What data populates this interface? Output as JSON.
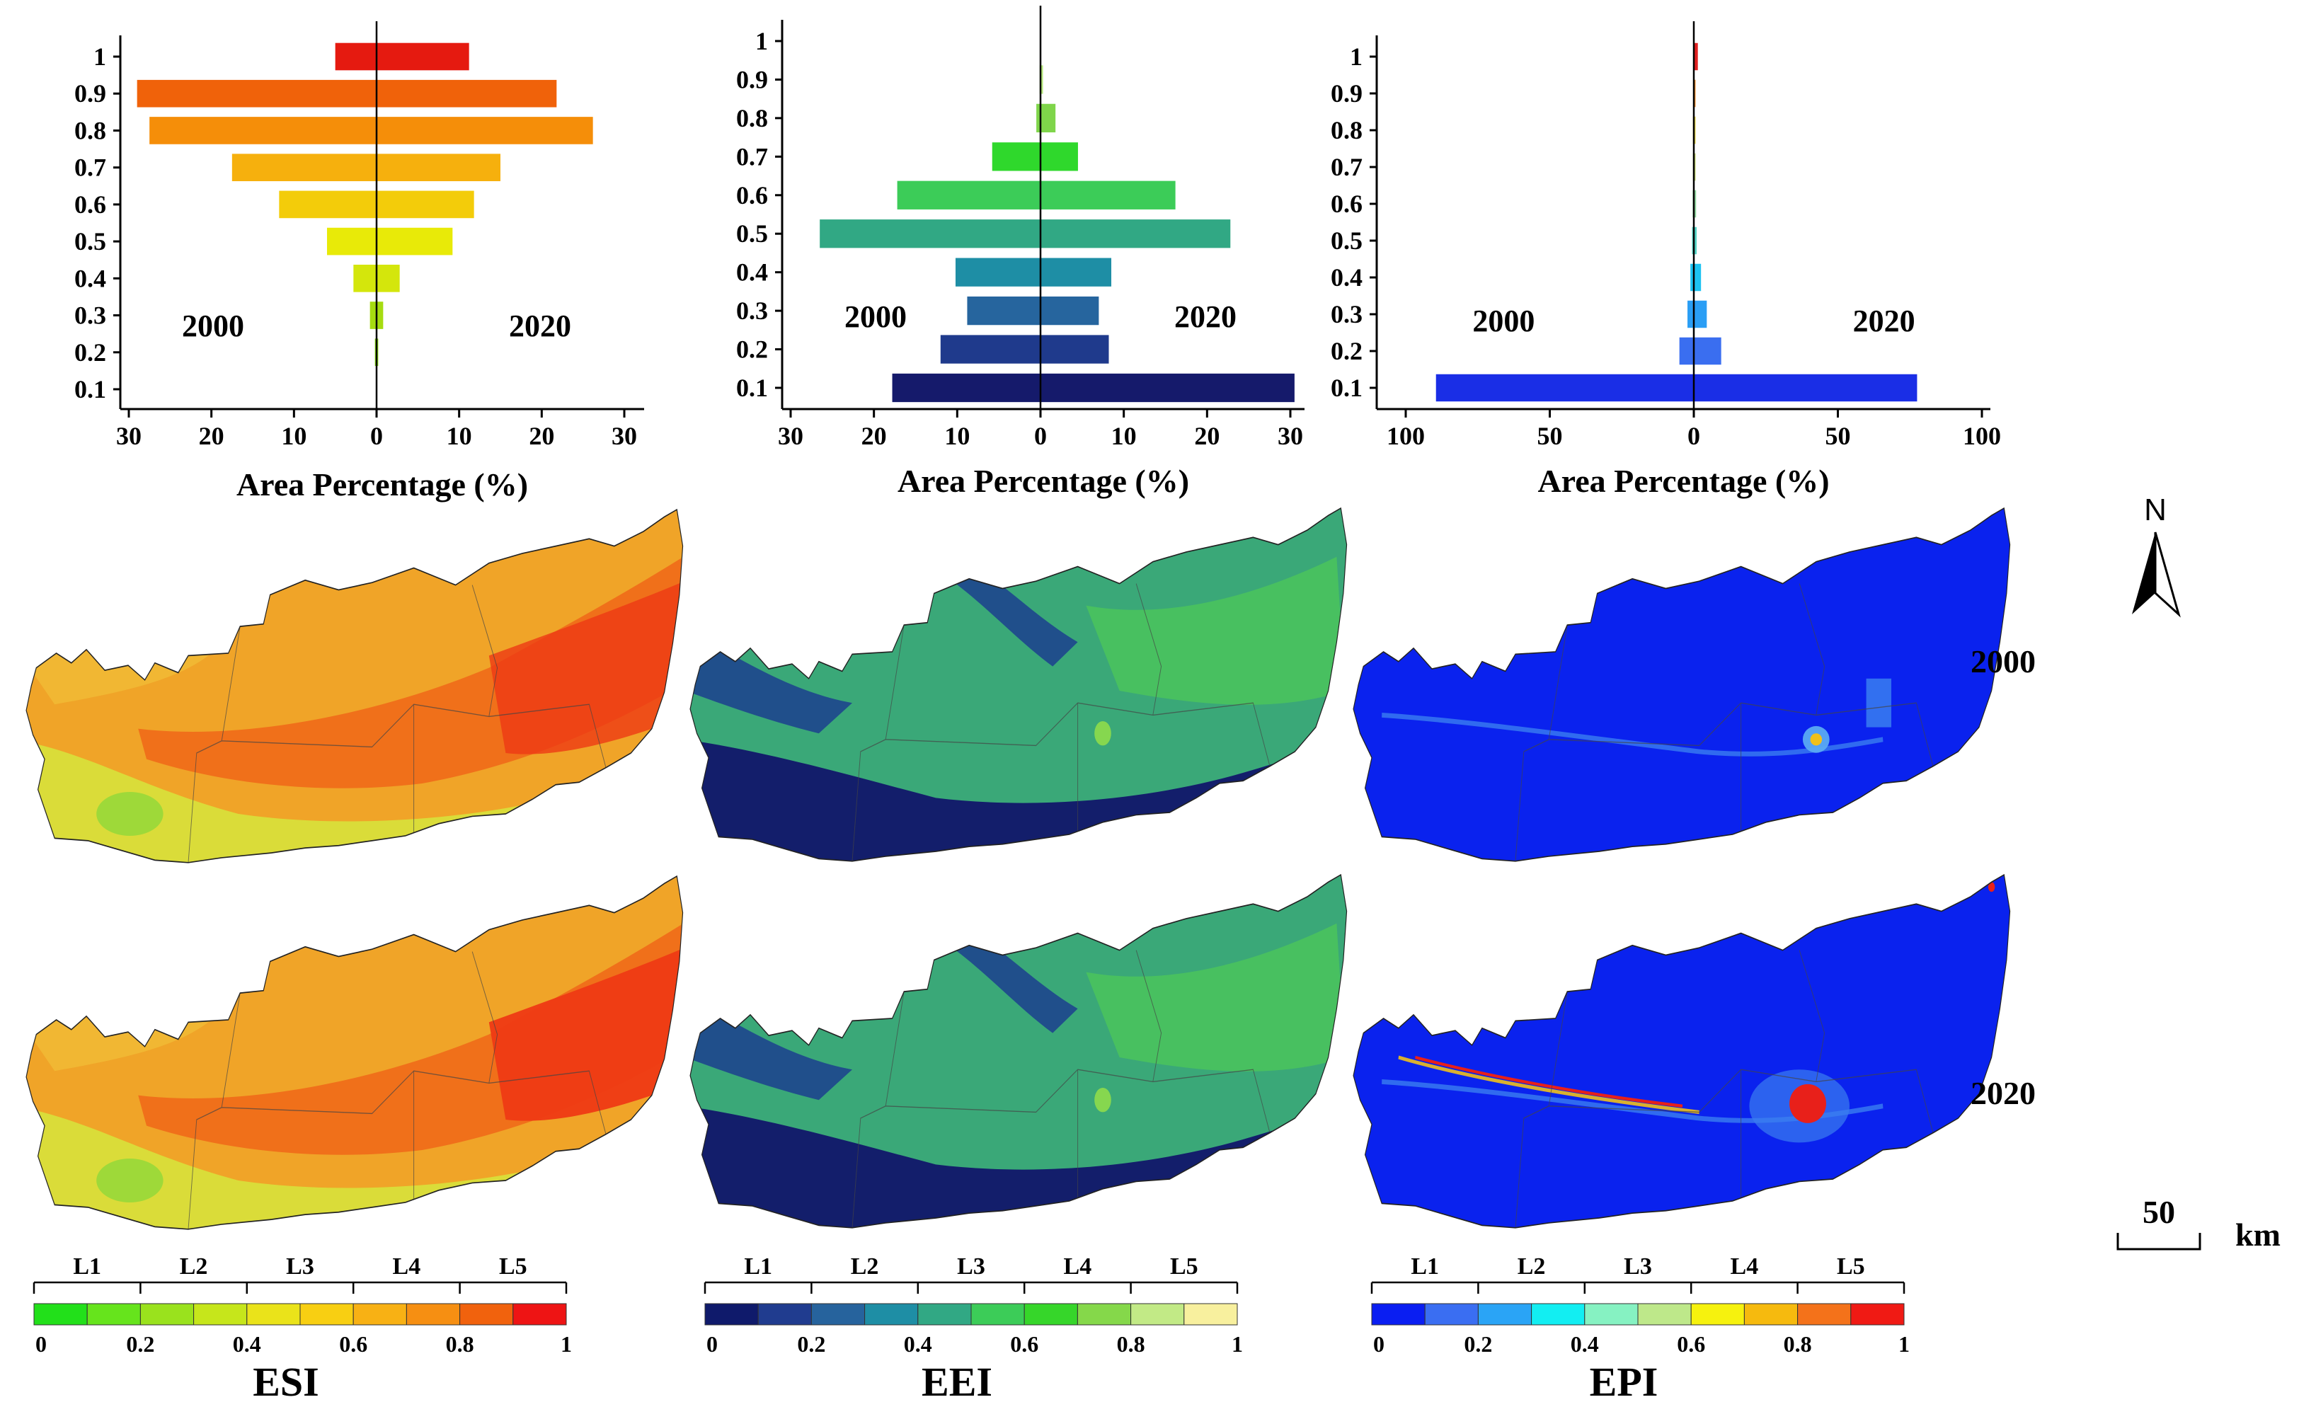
{
  "chart_data": [
    {
      "type": "bar",
      "orientation": "horizontal-pyramid",
      "index": "ESI",
      "xlabel": "Area Percentage (%)",
      "xlim": [
        -30,
        30
      ],
      "xticks": [
        30,
        20,
        10,
        0,
        10,
        20,
        30
      ],
      "yticks": [
        "0.1",
        "0.2",
        "0.3",
        "0.4",
        "0.5",
        "0.6",
        "0.7",
        "0.8",
        "0.9",
        "1"
      ],
      "left_year": "2000",
      "right_year": "2020",
      "colors": [
        "#38d13a",
        "#7ed40e",
        "#a6dc10",
        "#d4e60c",
        "#e8ea08",
        "#f3cc0a",
        "#f6b00d",
        "#f58e09",
        "#f0620a",
        "#e51a10"
      ],
      "values_2000": [
        0,
        0.2,
        0.8,
        2.8,
        6.0,
        11.8,
        17.5,
        27.5,
        29.0,
        5.0
      ],
      "values_2020": [
        0,
        0.2,
        0.8,
        2.8,
        9.2,
        11.8,
        15.0,
        26.2,
        21.8,
        11.2
      ]
    },
    {
      "type": "bar",
      "orientation": "horizontal-pyramid",
      "index": "EEI",
      "xlabel": "Area Percentage (%)",
      "xlim": [
        -30,
        30
      ],
      "xticks": [
        30,
        20,
        10,
        0,
        10,
        20,
        30
      ],
      "yticks": [
        "0.1",
        "0.2",
        "0.3",
        "0.4",
        "0.5",
        "0.6",
        "0.7",
        "0.8",
        "0.9",
        "1"
      ],
      "left_year": "2000",
      "right_year": "2020",
      "colors": [
        "#151a6b",
        "#1f3a8c",
        "#26659e",
        "#1e8ea5",
        "#31a884",
        "#3ccc58",
        "#2fd82c",
        "#7fd54a",
        "#b7e87c",
        "#f2ef98"
      ],
      "values_2000": [
        17.8,
        12.0,
        8.8,
        10.2,
        26.5,
        17.2,
        5.8,
        0.5,
        0.1,
        0
      ],
      "values_2020": [
        30.5,
        8.2,
        7.0,
        8.5,
        22.8,
        16.2,
        4.5,
        1.8,
        0.3,
        0
      ]
    },
    {
      "type": "bar",
      "orientation": "horizontal-pyramid",
      "index": "EPI",
      "xlabel": "Area Percentage (%)",
      "xlim": [
        -100,
        100
      ],
      "xticks": [
        100,
        50,
        0,
        50,
        100
      ],
      "yticks": [
        "0.1",
        "0.2",
        "0.3",
        "0.4",
        "0.5",
        "0.6",
        "0.7",
        "0.8",
        "0.9",
        "1"
      ],
      "left_year": "2000",
      "right_year": "2020",
      "colors": [
        "#1a2ee6",
        "#3a6ef0",
        "#2a9ef5",
        "#1dc3f2",
        "#57d6c8",
        "#92d8a0",
        "#c4d868",
        "#e7d43a",
        "#f08a25",
        "#e02020"
      ],
      "values_2000": [
        89.5,
        5.0,
        2.2,
        1.2,
        0.6,
        0.4,
        0.3,
        0.3,
        0.2,
        0.2
      ],
      "values_2020": [
        77.5,
        9.5,
        4.5,
        2.5,
        1.0,
        0.8,
        0.6,
        0.6,
        0.6,
        1.4
      ]
    }
  ],
  "years": {
    "top": "2000",
    "bottom": "2020"
  },
  "north_label": "N",
  "scalebar": {
    "value": "50",
    "unit": "km"
  },
  "legends": [
    {
      "index": "ESI",
      "levels": [
        "L1",
        "L2",
        "L3",
        "L4",
        "L5"
      ],
      "ticks": [
        "0",
        "0.2",
        "0.4",
        "0.6",
        "0.8",
        "1"
      ],
      "colors": [
        "#22e01a",
        "#66e41c",
        "#9ae21d",
        "#c6e61b",
        "#eae31a",
        "#f8cf12",
        "#f8b114",
        "#f68f12",
        "#f1620d",
        "#ee1414"
      ]
    },
    {
      "index": "EEI",
      "levels": [
        "L1",
        "L2",
        "L3",
        "L4",
        "L5"
      ],
      "ticks": [
        "0",
        "0.2",
        "0.4",
        "0.6",
        "0.8",
        "1"
      ],
      "colors": [
        "#0f1a6b",
        "#203c8f",
        "#26639d",
        "#1e8ea5",
        "#31a884",
        "#3ccc58",
        "#36d62a",
        "#85d84a",
        "#c2ea86",
        "#f8f09e"
      ]
    },
    {
      "index": "EPI",
      "levels": [
        "L1",
        "L2",
        "L3",
        "L4",
        "L5"
      ],
      "ticks": [
        "0",
        "0.2",
        "0.4",
        "0.6",
        "0.8",
        "1"
      ],
      "colors": [
        "#0a1ef2",
        "#3a6ef2",
        "#2aa4f6",
        "#12eef2",
        "#86f2c2",
        "#bee88a",
        "#f6f20e",
        "#f6ba0e",
        "#f4721a",
        "#f01a14"
      ]
    }
  ],
  "maps": [
    {
      "index": "ESI",
      "year": "2000",
      "base": "#f0a428",
      "warm": "#f06a18",
      "hot": "#ee3a14",
      "cool": "#d8df3a",
      "green": "#8ed83a"
    },
    {
      "index": "EEI",
      "year": "2000",
      "base": "#3aa878",
      "warm": "#4cc65a",
      "hot": "#8fdc4a",
      "cool": "#1c3f8e",
      "green": "#121a6a"
    },
    {
      "index": "EPI",
      "year": "2000",
      "base": "#0a22ee",
      "warm": "#3a7ef0",
      "hot": "#f0c01a",
      "cool": "#1a44f0",
      "green": "#5aaaf2"
    },
    {
      "index": "ESI",
      "year": "2020",
      "base": "#f0a428",
      "warm": "#f06a18",
      "hot": "#ee3a14",
      "cool": "#d8df3a",
      "green": "#8ed83a"
    },
    {
      "index": "EEI",
      "year": "2020",
      "base": "#3aa878",
      "warm": "#4cc65a",
      "hot": "#8fdc4a",
      "cool": "#1c3f8e",
      "green": "#121a6a"
    },
    {
      "index": "EPI",
      "year": "2020",
      "base": "#0a22ee",
      "warm": "#3a7ef0",
      "hot": "#e8201a",
      "cool": "#1a44f0",
      "green": "#f0c01a"
    }
  ]
}
